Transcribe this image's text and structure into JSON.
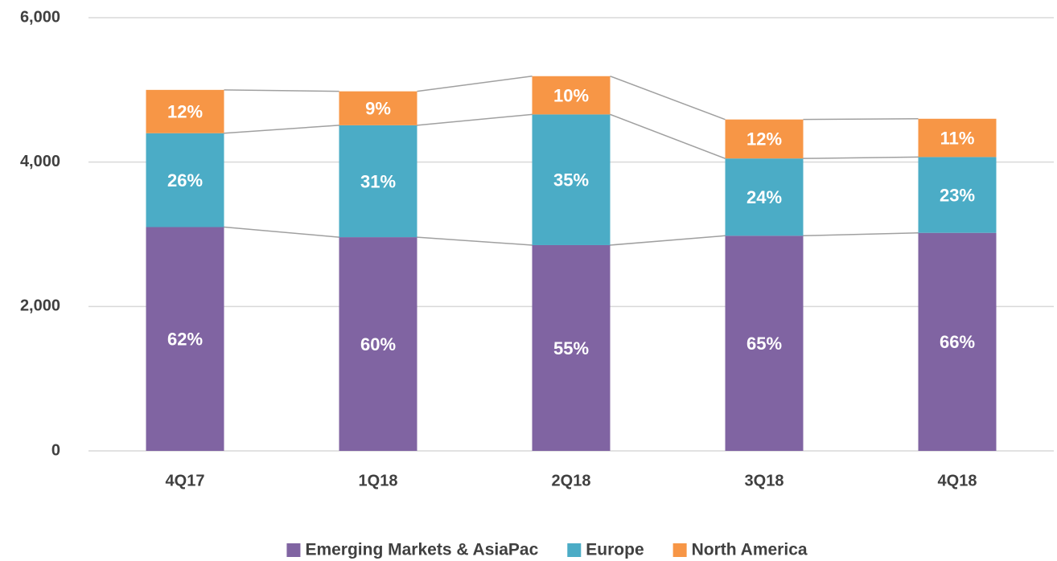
{
  "chart_data": {
    "type": "stacked_bar",
    "categories": [
      "4Q17",
      "1Q18",
      "2Q18",
      "3Q18",
      "4Q18"
    ],
    "series": [
      {
        "name": "Emerging Markets & AsiaPac",
        "color": "#8064a2",
        "values": [
          3100,
          2960,
          2850,
          2980,
          3020
        ],
        "share_labels": [
          "62%",
          "60%",
          "55%",
          "65%",
          "66%"
        ]
      },
      {
        "name": "Europe",
        "color": "#4bacc6",
        "values": [
          1300,
          1550,
          1810,
          1070,
          1050
        ],
        "share_labels": [
          "26%",
          "31%",
          "35%",
          "24%",
          "23%"
        ]
      },
      {
        "name": "North America",
        "color": "#f79646",
        "values": [
          600,
          470,
          530,
          540,
          530
        ],
        "share_labels": [
          "12%",
          "9%",
          "10%",
          "12%",
          "11%"
        ]
      }
    ],
    "ylim": [
      0,
      6000
    ],
    "yticks": [
      0,
      {
        "value": 2000,
        "label": "2,000"
      },
      {
        "value": 4000,
        "label": "4,000"
      },
      {
        "value": 6000,
        "label": "6,000"
      }
    ],
    "grid": true,
    "legend": "bottom"
  }
}
